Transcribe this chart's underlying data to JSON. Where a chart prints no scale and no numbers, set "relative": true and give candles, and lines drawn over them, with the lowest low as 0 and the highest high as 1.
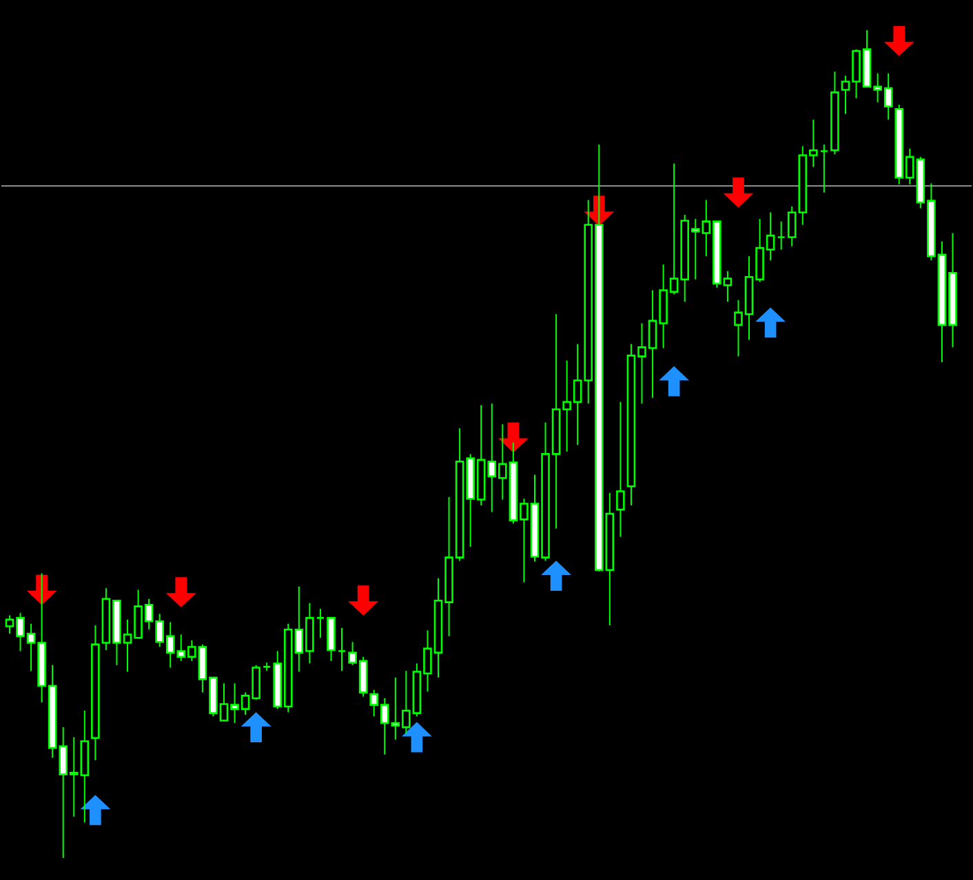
{
  "chart_data": {
    "type": "candlestick",
    "relative": true,
    "tick_labels": false,
    "grid": false,
    "color": "#00ff00",
    "categories": [
      null,
      null,
      null,
      null,
      null,
      null,
      null,
      null,
      null,
      null,
      null,
      null,
      null,
      null,
      null,
      null,
      null,
      null,
      null,
      null,
      null,
      null,
      null,
      null,
      null,
      null,
      null,
      null,
      null,
      null,
      null,
      null,
      null,
      null,
      null,
      null,
      null,
      null,
      null,
      null,
      null,
      null,
      null,
      null,
      null,
      null,
      null,
      null,
      null,
      null,
      null,
      null,
      null,
      null,
      null,
      null,
      null,
      null,
      null,
      null,
      null,
      null,
      null,
      null,
      null,
      null,
      null,
      null,
      null,
      null,
      null,
      null,
      null,
      null,
      null,
      null,
      null,
      null,
      null,
      null,
      null,
      null,
      null,
      null,
      null,
      null,
      null,
      null,
      null
    ],
    "ohlc": [
      [
        0.28,
        0.293,
        0.271,
        0.288
      ],
      [
        0.29,
        0.296,
        0.25,
        0.268
      ],
      [
        0.271,
        0.283,
        0.226,
        0.26
      ],
      [
        0.26,
        0.344,
        0.188,
        0.208
      ],
      [
        0.208,
        0.233,
        0.121,
        0.133
      ],
      [
        0.135,
        0.158,
        0,
        0.101
      ],
      [
        0.101,
        0.146,
        0.05,
        0.103
      ],
      [
        0.1,
        0.178,
        0.043,
        0.141
      ],
      [
        0.145,
        0.281,
        0.118,
        0.258
      ],
      [
        0.26,
        0.326,
        0.251,
        0.313
      ],
      [
        0.311,
        0.311,
        0.233,
        0.26
      ],
      [
        0.26,
        0.288,
        0.225,
        0.27
      ],
      [
        0.266,
        0.324,
        0.265,
        0.304
      ],
      [
        0.306,
        0.313,
        0.276,
        0.286
      ],
      [
        0.286,
        0.295,
        0.255,
        0.261
      ],
      [
        0.268,
        0.285,
        0.23,
        0.248
      ],
      [
        0.25,
        0.27,
        0.238,
        0.243
      ],
      [
        0.243,
        0.263,
        0.238,
        0.255
      ],
      [
        0.255,
        0.258,
        0.2,
        0.216
      ],
      [
        0.218,
        0.218,
        0.171,
        0.175
      ],
      [
        0.166,
        0.211,
        0.165,
        0.186
      ],
      [
        0.185,
        0.211,
        0.163,
        0.18
      ],
      [
        0.18,
        0.2,
        0.173,
        0.196
      ],
      [
        0.193,
        0.233,
        0.191,
        0.23
      ],
      [
        0.231,
        0.236,
        0.226,
        0.231
      ],
      [
        0.235,
        0.25,
        0.18,
        0.183
      ],
      [
        0.183,
        0.283,
        0.176,
        0.276
      ],
      [
        0.276,
        0.328,
        0.225,
        0.248
      ],
      [
        0.25,
        0.308,
        0.235,
        0.29
      ],
      [
        0.29,
        0.301,
        0.266,
        0.29
      ],
      [
        0.29,
        0.29,
        0.238,
        0.251
      ],
      [
        0.25,
        0.278,
        0.226,
        0.25
      ],
      [
        0.248,
        0.261,
        0.233,
        0.236
      ],
      [
        0.238,
        0.243,
        0.195,
        0.2
      ],
      [
        0.198,
        0.203,
        0.171,
        0.185
      ],
      [
        0.185,
        0.193,
        0.125,
        0.163
      ],
      [
        0.163,
        0.218,
        0.143,
        0.16
      ],
      [
        0.158,
        0.226,
        0.15,
        0.178
      ],
      [
        0.175,
        0.235,
        0.171,
        0.225
      ],
      [
        0.223,
        0.275,
        0.201,
        0.253
      ],
      [
        0.248,
        0.338,
        0.218,
        0.311
      ],
      [
        0.309,
        0.436,
        0.268,
        0.363
      ],
      [
        0.363,
        0.519,
        0.359,
        0.479
      ],
      [
        0.483,
        0.488,
        0.376,
        0.434
      ],
      [
        0.433,
        0.547,
        0.426,
        0.481
      ],
      [
        0.479,
        0.549,
        0.418,
        0.461
      ],
      [
        0.459,
        0.524,
        0.433,
        0.476
      ],
      [
        0.478,
        0.502,
        0.404,
        0.408
      ],
      [
        0.409,
        0.434,
        0.333,
        0.428
      ],
      [
        0.428,
        0.463,
        0.358,
        0.364
      ],
      [
        0.363,
        0.526,
        0.359,
        0.488
      ],
      [
        0.488,
        0.657,
        0.398,
        0.542
      ],
      [
        0.542,
        0.601,
        0.491,
        0.551
      ],
      [
        0.551,
        0.621,
        0.499,
        0.577
      ],
      [
        0.577,
        0.795,
        0.549,
        0.765
      ],
      [
        0.765,
        0.862,
        0.346,
        0.348
      ],
      [
        0.348,
        0.441,
        0.281,
        0.416
      ],
      [
        0.421,
        0.551,
        0.388,
        0.443
      ],
      [
        0.449,
        0.621,
        0.426,
        0.607
      ],
      [
        0.606,
        0.646,
        0.549,
        0.617
      ],
      [
        0.616,
        0.686,
        0.556,
        0.649
      ],
      [
        0.646,
        0.717,
        0.616,
        0.686
      ],
      [
        0.684,
        0.839,
        0.681,
        0.7
      ],
      [
        0.699,
        0.777,
        0.672,
        0.77
      ],
      [
        0.76,
        0.772,
        0.699,
        0.757
      ],
      [
        0.755,
        0.795,
        0.727,
        0.769
      ],
      [
        0.769,
        0.769,
        0.689,
        0.694
      ],
      [
        0.692,
        0.709,
        0.672,
        0.7
      ],
      [
        0.644,
        0.674,
        0.606,
        0.659
      ],
      [
        0.657,
        0.727,
        0.626,
        0.702
      ],
      [
        0.699,
        0.772,
        0.696,
        0.737
      ],
      [
        0.735,
        0.78,
        0.722,
        0.752
      ],
      [
        0.75,
        0.769,
        0.735,
        0.75
      ],
      [
        0.75,
        0.787,
        0.739,
        0.78
      ],
      [
        0.78,
        0.86,
        0.765,
        0.849
      ],
      [
        0.849,
        0.892,
        0.835,
        0.855
      ],
      [
        0.854,
        0.862,
        0.804,
        0.854
      ],
      [
        0.855,
        0.95,
        0.85,
        0.925
      ],
      [
        0.928,
        0.945,
        0.899,
        0.938
      ],
      [
        0.938,
        0.977,
        0.918,
        0.975
      ],
      [
        0.977,
        1,
        0.932,
        0.932
      ],
      [
        0.932,
        0.948,
        0.913,
        0.928
      ],
      [
        0.93,
        0.948,
        0.892,
        0.908
      ],
      [
        0.905,
        0.91,
        0.814,
        0.822
      ],
      [
        0.822,
        0.857,
        0.814,
        0.847
      ],
      [
        0.844,
        0.847,
        0.785,
        0.792
      ],
      [
        0.794,
        0.815,
        0.722,
        0.727
      ],
      [
        0.729,
        0.745,
        0.599,
        0.644
      ],
      [
        0.707,
        0.755,
        0.617,
        0.644
      ]
    ],
    "series": [
      {
        "type": "scatter",
        "color": "#ff0000",
        "values": [
          null,
          null,
          null,
          0.324,
          null,
          null,
          null,
          null,
          null,
          null,
          null,
          null,
          null,
          null,
          null,
          null,
          0.321,
          null,
          null,
          null,
          null,
          null,
          null,
          null,
          null,
          null,
          null,
          null,
          null,
          null,
          null,
          null,
          null,
          0.311,
          null,
          null,
          null,
          null,
          null,
          null,
          null,
          null,
          null,
          null,
          null,
          null,
          null,
          0.508,
          null,
          null,
          null,
          null,
          null,
          null,
          null,
          0.782,
          null,
          null,
          null,
          null,
          null,
          null,
          null,
          null,
          null,
          null,
          null,
          null,
          0.804,
          null,
          null,
          null,
          null,
          null,
          null,
          null,
          null,
          null,
          null,
          null,
          null,
          null,
          null,
          0.987,
          null,
          null,
          null,
          null,
          null
        ]
      },
      {
        "type": "scatter",
        "color": "#1e90ff",
        "values": [
          null,
          null,
          null,
          null,
          null,
          null,
          null,
          null,
          0.058,
          null,
          null,
          null,
          null,
          null,
          null,
          null,
          null,
          null,
          null,
          null,
          null,
          null,
          null,
          0.158,
          null,
          null,
          null,
          null,
          null,
          null,
          null,
          null,
          null,
          null,
          null,
          null,
          null,
          null,
          0.146,
          null,
          null,
          null,
          null,
          null,
          null,
          null,
          null,
          null,
          null,
          null,
          null,
          0.341,
          null,
          null,
          null,
          null,
          null,
          null,
          null,
          null,
          null,
          null,
          0.576,
          null,
          null,
          null,
          null,
          null,
          null,
          null,
          null,
          0.647,
          null,
          null,
          null,
          null,
          null,
          null,
          null,
          null,
          null,
          null,
          null,
          null,
          null,
          null,
          null,
          null,
          null
        ]
      }
    ],
    "ref_lines": [
      {
        "axis": "y",
        "value": 0.812,
        "color": "#8c8c8c"
      }
    ]
  }
}
